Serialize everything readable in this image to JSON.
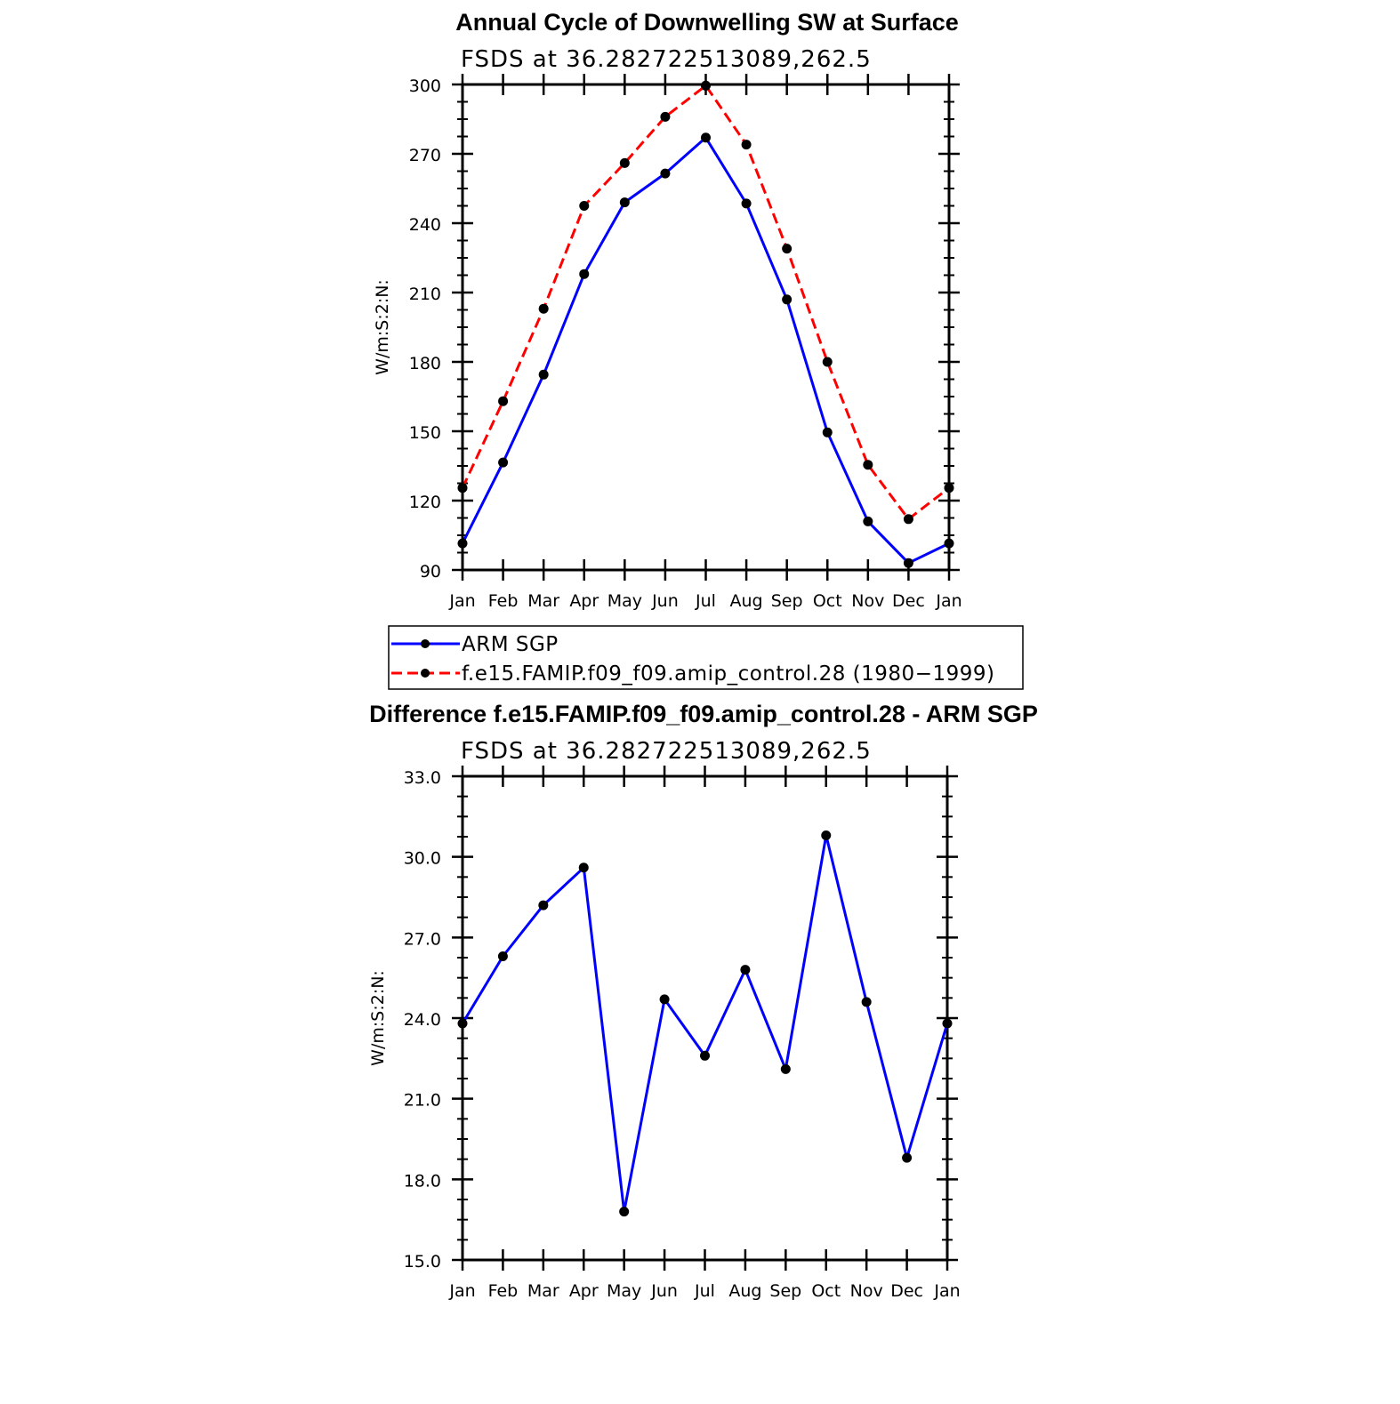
{
  "chart_data": [
    {
      "type": "line",
      "title": "Annual Cycle of Downwelling SW at Surface",
      "subtitle": "FSDS at 36.282722513089,262.5",
      "ylabel": "W/m:S:2:N:",
      "xlabel": "",
      "categories": [
        "Jan",
        "Feb",
        "Mar",
        "Apr",
        "May",
        "Jun",
        "Jul",
        "Aug",
        "Sep",
        "Oct",
        "Nov",
        "Dec",
        "Jan"
      ],
      "ylim": [
        90,
        300
      ],
      "yticks": [
        "90",
        "120",
        "150",
        "180",
        "210",
        "240",
        "270",
        "300"
      ],
      "ytick_values": [
        90,
        120,
        150,
        180,
        210,
        240,
        270,
        300
      ],
      "series": [
        {
          "name": "ARM SGP",
          "color": "#0000ff",
          "dash": "solid",
          "values": [
            101.5,
            136.5,
            174.5,
            218.0,
            249.0,
            261.5,
            277.0,
            248.5,
            207.0,
            149.5,
            111.0,
            93.0,
            101.5
          ]
        },
        {
          "name": "f.e15.FAMIP.f09_f09.amip_control.28 (1980−1999)",
          "color": "#ff0000",
          "dash": "dashed",
          "values": [
            125.5,
            163.0,
            203.0,
            247.5,
            266.0,
            286.0,
            299.5,
            274.0,
            229.0,
            180.0,
            135.5,
            112.0,
            125.5
          ]
        }
      ],
      "legend": "bottom",
      "grid": false
    },
    {
      "type": "line",
      "title": "Difference f.e15.FAMIP.f09_f09.amip_control.28 - ARM SGP",
      "subtitle": "FSDS at 36.282722513089,262.5",
      "ylabel": "W/m:S:2:N:",
      "xlabel": "",
      "categories": [
        "Jan",
        "Feb",
        "Mar",
        "Apr",
        "May",
        "Jun",
        "Jul",
        "Aug",
        "Sep",
        "Oct",
        "Nov",
        "Dec",
        "Jan"
      ],
      "ylim": [
        15,
        33
      ],
      "yticks": [
        "15.0",
        "18.0",
        "21.0",
        "24.0",
        "27.0",
        "30.0",
        "33.0"
      ],
      "ytick_values": [
        15,
        18,
        21,
        24,
        27,
        30,
        33
      ],
      "series": [
        {
          "color": "#0000ff",
          "dash": "solid",
          "values": [
            23.8,
            26.3,
            28.2,
            29.6,
            16.8,
            24.7,
            22.6,
            25.8,
            22.1,
            30.8,
            24.6,
            18.8,
            23.8
          ]
        }
      ],
      "grid": false
    }
  ]
}
